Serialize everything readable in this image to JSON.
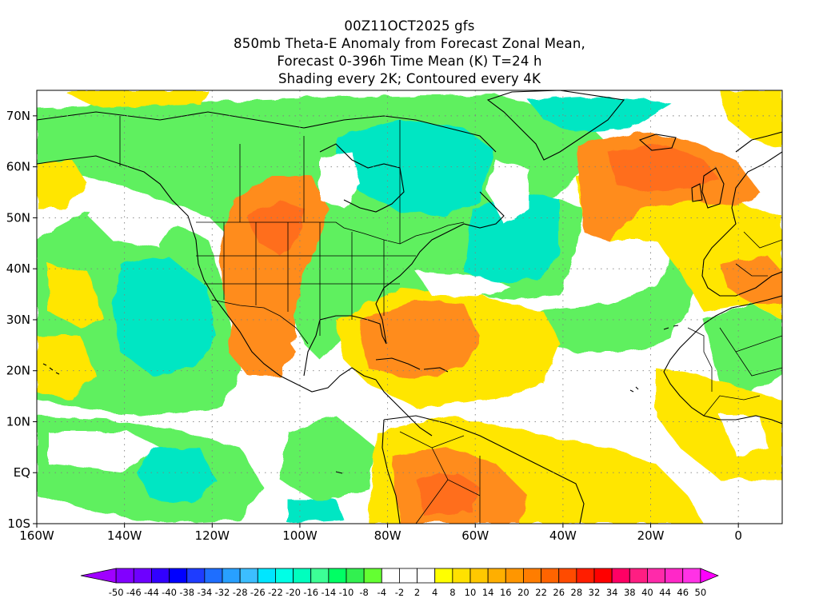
{
  "title": {
    "line1": "00Z11OCT2025 gfs",
    "line2": "850mb Theta-E Anomaly from Forecast Zonal Mean,",
    "line3": "Forecast 0-396h Time Mean (K) T=24 h",
    "line4": "Shading every 2K; Contoured every 4K"
  },
  "map": {
    "projection": "lat-lon",
    "lon_range": [
      -160,
      10
    ],
    "lat_range": [
      -10,
      75
    ],
    "x_ticks": [
      "160W",
      "140W",
      "120W",
      "100W",
      "80W",
      "60W",
      "40W",
      "20W",
      "0"
    ],
    "x_tick_values": [
      -160,
      -140,
      -120,
      -100,
      -80,
      -60,
      -40,
      -20,
      0
    ],
    "y_ticks": [
      "10S",
      "EQ",
      "10N",
      "20N",
      "30N",
      "40N",
      "50N",
      "60N",
      "70N"
    ],
    "y_tick_values": [
      -10,
      0,
      10,
      20,
      30,
      40,
      50,
      60,
      70
    ],
    "grid": "dotted"
  },
  "colorbar": {
    "labels": [
      "-50",
      "-46",
      "-44",
      "-40",
      "-38",
      "-34",
      "-32",
      "-28",
      "-26",
      "-22",
      "-20",
      "-16",
      "-14",
      "-10",
      "-8",
      "-4",
      "-2",
      "2",
      "4",
      "8",
      "10",
      "14",
      "16",
      "20",
      "22",
      "26",
      "28",
      "32",
      "34",
      "38",
      "40",
      "44",
      "46",
      "50"
    ],
    "colors": [
      "#a000ff",
      "#8200ff",
      "#6e00ff",
      "#3200ff",
      "#0000ff",
      "#1e3cff",
      "#1e6eff",
      "#28a0ff",
      "#3cbeff",
      "#00e6ff",
      "#00ffe6",
      "#00ffbe",
      "#3cff96",
      "#00ff64",
      "#32f050",
      "#64ff32",
      "#ffffff",
      "#ffffff",
      "#ffffff",
      "#ffff00",
      "#ffe100",
      "#ffc800",
      "#ffaf00",
      "#ff9600",
      "#ff7d00",
      "#ff6400",
      "#ff4b00",
      "#ff1e00",
      "#ff0000",
      "#ff0064",
      "#ff1e82",
      "#ff2aaa",
      "#ff28c8",
      "#ff32e6",
      "#ff00ff"
    ]
  },
  "colors": {
    "green": "#5ef05e",
    "green_light": "#8ff07a",
    "cyan": "#00e6c3",
    "yellow": "#ffe600",
    "orange": "#ff9600",
    "red_orange": "#ff6e1e"
  }
}
